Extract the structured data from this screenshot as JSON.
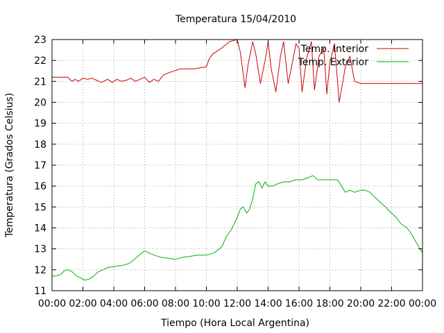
{
  "chart_data": {
    "type": "line",
    "title": "Temperatura 15/04/2010",
    "xlabel": "Tiempo (Hora Local Argentina)",
    "ylabel": "Temperatura (Grados Celsius)",
    "xlim": [
      0,
      24
    ],
    "ylim": [
      11,
      23
    ],
    "x_tick_labels": [
      "00:00",
      "02:00",
      "04:00",
      "06:00",
      "08:00",
      "10:00",
      "12:00",
      "14:00",
      "16:00",
      "18:00",
      "20:00",
      "22:00",
      "00:00"
    ],
    "y_tick_labels": [
      "11",
      "12",
      "13",
      "14",
      "15",
      "16",
      "17",
      "18",
      "19",
      "20",
      "21",
      "22",
      "23"
    ],
    "grid": true,
    "legend_position": "top-right",
    "series": [
      {
        "name": "Temp. Interior",
        "color": "#cc0000",
        "x": [
          0,
          0.5,
          1.0,
          1.3,
          1.5,
          1.7,
          2.0,
          2.3,
          2.6,
          2.9,
          3.2,
          3.6,
          3.9,
          4.2,
          4.5,
          4.8,
          5.1,
          5.4,
          5.7,
          6.0,
          6.3,
          6.6,
          6.9,
          7.2,
          7.5,
          7.9,
          8.3,
          8.7,
          9.2,
          9.6,
          10.0,
          10.2,
          10.4,
          10.6,
          11.0,
          11.5,
          12.0,
          12.2,
          12.5,
          12.7,
          13.0,
          13.2,
          13.5,
          13.8,
          14.0,
          14.2,
          14.5,
          14.8,
          15.0,
          15.3,
          15.6,
          15.8,
          16.0,
          16.2,
          16.5,
          16.8,
          17.0,
          17.3,
          17.6,
          17.8,
          18.0,
          18.3,
          18.6,
          19.0,
          19.3,
          19.6,
          20.0,
          20.5,
          21.0,
          22.0,
          23.0,
          24.0
        ],
        "y": [
          21.2,
          21.2,
          21.2,
          21.0,
          21.1,
          21.0,
          21.15,
          21.1,
          21.15,
          21.05,
          20.95,
          21.1,
          20.95,
          21.1,
          21.0,
          21.05,
          21.15,
          21.0,
          21.1,
          21.2,
          20.95,
          21.1,
          21.0,
          21.3,
          21.4,
          21.5,
          21.6,
          21.6,
          21.6,
          21.65,
          21.7,
          22.1,
          22.3,
          22.4,
          22.6,
          22.9,
          23.0,
          22.4,
          20.7,
          21.8,
          22.9,
          22.3,
          20.9,
          22.0,
          22.9,
          21.6,
          20.5,
          22.2,
          22.9,
          20.9,
          22.0,
          22.8,
          22.6,
          20.5,
          22.1,
          22.9,
          20.6,
          22.2,
          22.6,
          20.4,
          21.9,
          22.8,
          20.0,
          21.7,
          22.2,
          21.0,
          20.9,
          20.9,
          20.9,
          20.9,
          20.9,
          20.9
        ]
      },
      {
        "name": "Temp. Exterior",
        "color": "#00b000",
        "x": [
          0,
          0.3,
          0.6,
          0.8,
          1.0,
          1.3,
          1.6,
          1.9,
          2.1,
          2.4,
          2.7,
          3.0,
          3.3,
          3.6,
          4.0,
          4.5,
          5.0,
          5.5,
          5.8,
          6.0,
          6.3,
          6.6,
          7.0,
          7.5,
          8.0,
          8.5,
          9.0,
          9.5,
          10.0,
          10.5,
          11.0,
          11.3,
          11.6,
          12.0,
          12.2,
          12.4,
          12.6,
          12.8,
          13.0,
          13.2,
          13.4,
          13.6,
          13.8,
          14.0,
          14.3,
          14.6,
          15.0,
          15.4,
          15.8,
          16.2,
          16.6,
          16.9,
          17.2,
          17.5,
          18.0,
          18.5,
          19.0,
          19.3,
          19.6,
          20.0,
          20.3,
          20.6,
          21.0,
          21.3,
          21.6,
          22.0,
          22.3,
          22.6,
          23.0,
          23.3,
          23.6,
          24.0
        ],
        "y": [
          11.7,
          11.7,
          11.8,
          11.95,
          12.0,
          11.9,
          11.7,
          11.6,
          11.5,
          11.55,
          11.7,
          11.9,
          12.0,
          12.1,
          12.15,
          12.2,
          12.3,
          12.6,
          12.8,
          12.9,
          12.8,
          12.7,
          12.6,
          12.55,
          12.5,
          12.6,
          12.65,
          12.7,
          12.7,
          12.8,
          13.1,
          13.6,
          13.9,
          14.5,
          14.9,
          15.0,
          14.7,
          14.9,
          15.4,
          16.1,
          16.2,
          15.9,
          16.2,
          16.0,
          16.0,
          16.1,
          16.2,
          16.2,
          16.3,
          16.3,
          16.4,
          16.5,
          16.3,
          16.3,
          16.3,
          16.3,
          15.7,
          15.8,
          15.7,
          15.8,
          15.8,
          15.7,
          15.4,
          15.2,
          15.0,
          14.7,
          14.5,
          14.2,
          14.0,
          13.7,
          13.3,
          12.8
        ]
      }
    ]
  }
}
